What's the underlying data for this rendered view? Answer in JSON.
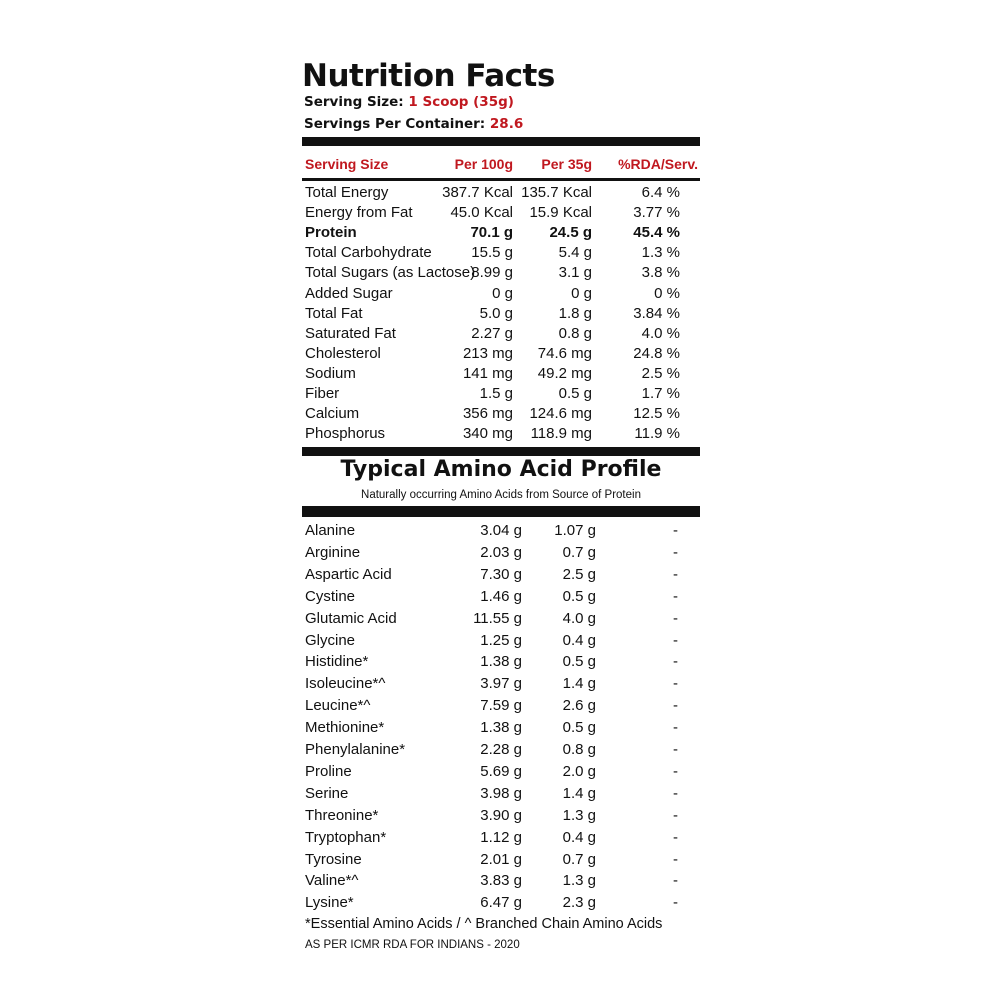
{
  "title": "Nutrition Facts",
  "serving_size": {
    "label": "Serving Size:",
    "value": "1 Scoop (35g)"
  },
  "servings_per_container": {
    "label": "Servings Per Container:",
    "value": "28.6"
  },
  "nutrition_header": {
    "name": "Serving Size",
    "per100": "Per 100g",
    "per35": "Per 35g",
    "rda": "%RDA/Serv."
  },
  "nutrition_rows": [
    {
      "name": "Total Energy",
      "per100": "387.7 Kcal",
      "per35": "135.7 Kcal",
      "rda": "6.4 %",
      "bold": false
    },
    {
      "name": "Energy from Fat",
      "per100": "45.0 Kcal",
      "per35": "15.9 Kcal",
      "rda": "3.77 %",
      "bold": false
    },
    {
      "name": "Protein",
      "per100": "70.1 g",
      "per35": "24.5 g",
      "rda": "45.4 %",
      "bold": true
    },
    {
      "name": "Total Carbohydrate",
      "per100": "15.5 g",
      "per35": "5.4 g",
      "rda": "1.3 %",
      "bold": false
    },
    {
      "name": "Total Sugars (as Lactose)",
      "per100": "8.99 g",
      "per35": "3.1 g",
      "rda": "3.8 %",
      "bold": false
    },
    {
      "name": "Added Sugar",
      "per100": "0 g",
      "per35": "0 g",
      "rda": "0 %",
      "bold": false
    },
    {
      "name": "Total Fat",
      "per100": "5.0 g",
      "per35": "1.8 g",
      "rda": "3.84 %",
      "bold": false
    },
    {
      "name": "Saturated Fat",
      "per100": "2.27 g",
      "per35": "0.8 g",
      "rda": "4.0 %",
      "bold": false
    },
    {
      "name": "Cholesterol",
      "per100": "213 mg",
      "per35": "74.6 mg",
      "rda": "24.8 %",
      "bold": false
    },
    {
      "name": "Sodium",
      "per100": "141 mg",
      "per35": "49.2 mg",
      "rda": "2.5 %",
      "bold": false
    },
    {
      "name": "Fiber",
      "per100": "1.5 g",
      "per35": "0.5 g",
      "rda": "1.7 %",
      "bold": false
    },
    {
      "name": "Calcium",
      "per100": "356 mg",
      "per35": "124.6 mg",
      "rda": "12.5 %",
      "bold": false
    },
    {
      "name": "Phosphorus",
      "per100": "340 mg",
      "per35": "118.9 mg",
      "rda": "11.9 %",
      "bold": false
    }
  ],
  "amino": {
    "title": "Typical Amino Acid Profile",
    "subtitle": "Naturally occurring Amino Acids from Source of Protein",
    "rows": [
      {
        "name": "Alanine",
        "per100": "3.04 g",
        "per35": "1.07 g",
        "rda": "-"
      },
      {
        "name": "Arginine",
        "per100": "2.03 g",
        "per35": "0.7 g",
        "rda": "-"
      },
      {
        "name": "Aspartic Acid",
        "per100": "7.30 g",
        "per35": "2.5 g",
        "rda": "-"
      },
      {
        "name": "Cystine",
        "per100": "1.46 g",
        "per35": "0.5 g",
        "rda": "-"
      },
      {
        "name": "Glutamic Acid",
        "per100": "11.55 g",
        "per35": "4.0 g",
        "rda": "-"
      },
      {
        "name": "Glycine",
        "per100": "1.25 g",
        "per35": "0.4 g",
        "rda": "-"
      },
      {
        "name": "Histidine*",
        "per100": "1.38 g",
        "per35": "0.5 g",
        "rda": "-"
      },
      {
        "name": "Isoleucine*^",
        "per100": "3.97 g",
        "per35": "1.4 g",
        "rda": "-"
      },
      {
        "name": "Leucine*^",
        "per100": "7.59 g",
        "per35": "2.6 g",
        "rda": "-"
      },
      {
        "name": "Methionine*",
        "per100": "1.38 g",
        "per35": "0.5 g",
        "rda": "-"
      },
      {
        "name": "Phenylalanine*",
        "per100": "2.28 g",
        "per35": "0.8 g",
        "rda": "-"
      },
      {
        "name": "Proline",
        "per100": "5.69 g",
        "per35": "2.0 g",
        "rda": "-"
      },
      {
        "name": "Serine",
        "per100": "3.98 g",
        "per35": "1.4 g",
        "rda": "-"
      },
      {
        "name": "Threonine*",
        "per100": "3.90 g",
        "per35": "1.3 g",
        "rda": "-"
      },
      {
        "name": "Tryptophan*",
        "per100": "1.12 g",
        "per35": "0.4 g",
        "rda": "-"
      },
      {
        "name": "Tyrosine",
        "per100": "2.01 g",
        "per35": "0.7 g",
        "rda": "-"
      },
      {
        "name": "Valine*^",
        "per100": "3.83 g",
        "per35": "1.3 g",
        "rda": "-"
      },
      {
        "name": "Lysine*",
        "per100": "6.47 g",
        "per35": "2.3 g",
        "rda": "-"
      }
    ]
  },
  "footnote": "*Essential Amino Acids / ^ Branched Chain Amino Acids",
  "source_note": "AS PER ICMR RDA FOR INDIANS - 2020",
  "colors": {
    "accent": "#c0181f",
    "text": "#111111",
    "background": "#ffffff"
  }
}
